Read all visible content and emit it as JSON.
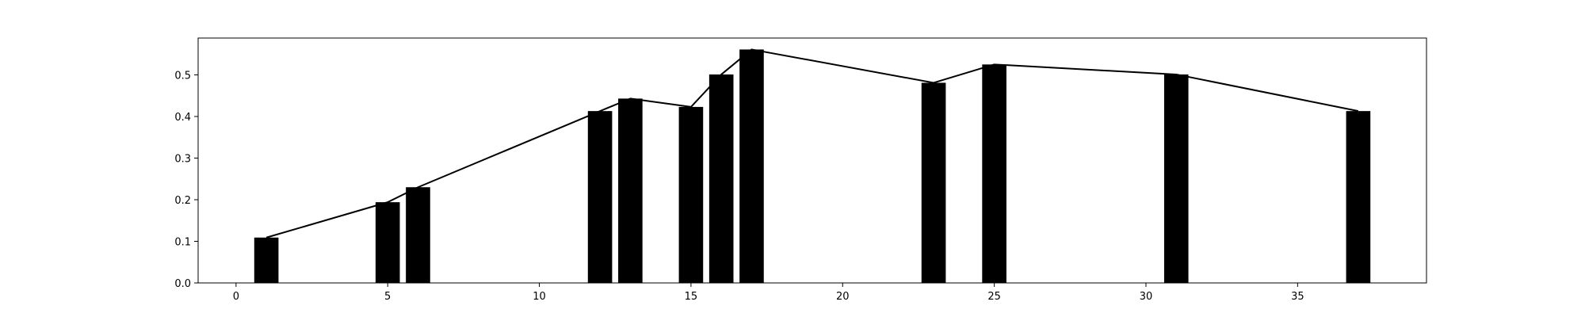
{
  "chart_data": {
    "type": "bar",
    "title": "",
    "xlabel": "",
    "ylabel": "",
    "xlim": [
      -1.25,
      39.25
    ],
    "ylim": [
      0.0,
      0.5885
    ],
    "grid": false,
    "x_ticks": [
      0,
      5,
      10,
      15,
      20,
      25,
      30,
      35
    ],
    "x_tick_labels": [
      "0",
      "5",
      "10",
      "15",
      "20",
      "25",
      "30",
      "35"
    ],
    "y_ticks": [
      0.0,
      0.1,
      0.2,
      0.3,
      0.4,
      0.5
    ],
    "y_tick_labels": [
      "0.0",
      "0.1",
      "0.2",
      "0.3",
      "0.4",
      "0.5"
    ],
    "bar_color": "#000000",
    "line_color": "#000000",
    "x": [
      1,
      5,
      6,
      12,
      13,
      15,
      16,
      17,
      23,
      25,
      31,
      37
    ],
    "series": [
      {
        "type": "bar",
        "values": [
          0.109,
          0.194,
          0.23,
          0.413,
          0.443,
          0.423,
          0.501,
          0.561,
          0.481,
          0.525,
          0.501,
          0.413
        ]
      },
      {
        "type": "line",
        "values": [
          0.109,
          0.194,
          0.23,
          0.413,
          0.443,
          0.423,
          0.501,
          0.561,
          0.481,
          0.525,
          0.501,
          0.413
        ]
      }
    ]
  }
}
